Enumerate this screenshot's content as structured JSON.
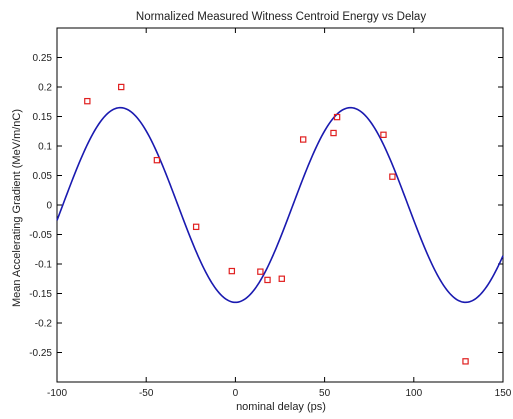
{
  "chart_data": {
    "type": "scatter",
    "title": "Normalized Measured Witness Centroid Energy vs Delay",
    "xlabel": "nominal delay (ps)",
    "ylabel": "Mean Accelerating Gradient (MeV/m/nC)",
    "xlim": [
      -100,
      150
    ],
    "ylim": [
      -0.3,
      0.3
    ],
    "xticks": [
      -100,
      -50,
      0,
      50,
      100,
      150
    ],
    "xtick_labels": [
      "-100",
      "-50",
      "0",
      "50",
      "100",
      "150"
    ],
    "yticks": [
      -0.25,
      -0.2,
      -0.15,
      -0.1,
      -0.05,
      0,
      0.05,
      0.1,
      0.15,
      0.2,
      0.25
    ],
    "ytick_labels": [
      "-0.25",
      "-0.2",
      "-0.15",
      "-0.1",
      "-0.05",
      "0",
      "0.05",
      "0.1",
      "0.15",
      "0.2",
      "0.25"
    ],
    "grid": false,
    "legend": "none",
    "series": [
      {
        "kind": "scatter",
        "marker": "square",
        "color": "#e02020",
        "x": [
          -83,
          -64,
          -44,
          -22,
          -2,
          14,
          18,
          26,
          38,
          55,
          57,
          83,
          88,
          129
        ],
        "y": [
          0.176,
          0.2,
          0.076,
          -0.037,
          -0.112,
          -0.113,
          -0.127,
          -0.125,
          0.111,
          0.122,
          0.149,
          0.119,
          0.048,
          -0.265
        ]
      },
      {
        "kind": "line",
        "color": "#1a1ab0",
        "function": "sine",
        "amplitude": 0.165,
        "period_ps": 129,
        "peak_x_ps": 64.5,
        "x_range": [
          -100,
          150
        ]
      }
    ]
  }
}
